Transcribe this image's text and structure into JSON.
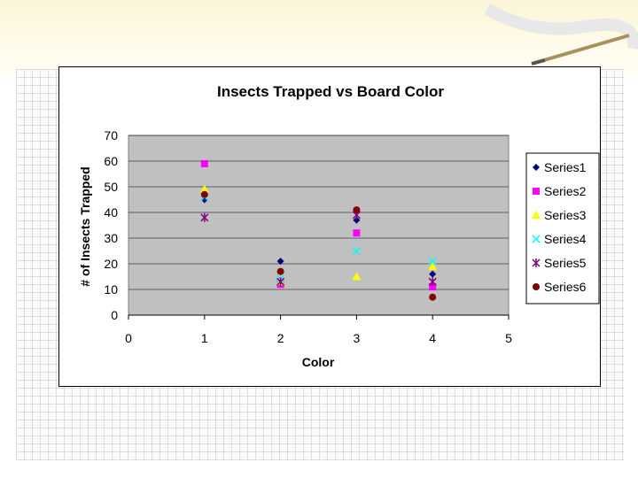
{
  "chart_data": {
    "type": "scatter",
    "title": "Insects Trapped vs Board Color",
    "xlabel": "Color",
    "ylabel": "# of Insects Trapped",
    "xlim": [
      0,
      5
    ],
    "ylim": [
      0,
      70
    ],
    "xticks": [
      "0",
      "1",
      "2",
      "3",
      "4",
      "5"
    ],
    "yticks": [
      "0",
      "10",
      "20",
      "30",
      "40",
      "50",
      "60",
      "70"
    ],
    "grid": "horizontal",
    "plot_background": "#c0c0c0",
    "legend_position": "right",
    "series": [
      {
        "name": "Series1",
        "marker": "diamond",
        "color": "#000080",
        "points": [
          [
            1,
            45
          ],
          [
            2,
            21
          ],
          [
            3,
            37
          ],
          [
            4,
            16
          ]
        ]
      },
      {
        "name": "Series2",
        "marker": "square",
        "color": "#ff00ff",
        "points": [
          [
            1,
            59
          ],
          [
            2,
            12
          ],
          [
            3,
            32
          ],
          [
            4,
            11
          ]
        ]
      },
      {
        "name": "Series3",
        "marker": "triangle",
        "color": "#ffff00",
        "points": [
          [
            1,
            49
          ],
          [
            2,
            13
          ],
          [
            3,
            15
          ],
          [
            4,
            19
          ]
        ]
      },
      {
        "name": "Series4",
        "marker": "x",
        "color": "#00ffff",
        "points": [
          [
            1,
            46
          ],
          [
            2,
            14
          ],
          [
            3,
            25
          ],
          [
            4,
            21
          ]
        ]
      },
      {
        "name": "Series5",
        "marker": "star",
        "color": "#800080",
        "points": [
          [
            1,
            38
          ],
          [
            2,
            13
          ],
          [
            3,
            39
          ],
          [
            4,
            13
          ]
        ]
      },
      {
        "name": "Series6",
        "marker": "circle",
        "color": "#800000",
        "points": [
          [
            1,
            47
          ],
          [
            2,
            17
          ],
          [
            3,
            41
          ],
          [
            4,
            7
          ]
        ]
      }
    ]
  }
}
